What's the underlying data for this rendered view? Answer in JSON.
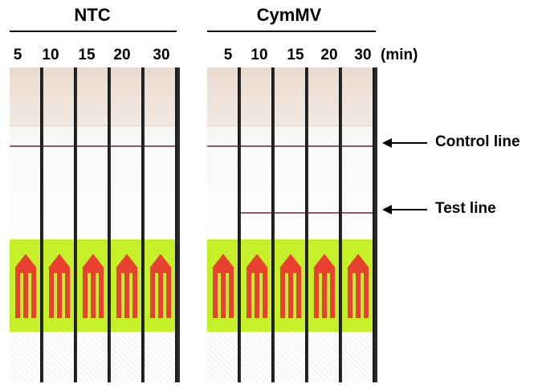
{
  "groups": [
    {
      "title": "NTC",
      "times": [
        "5",
        "10",
        "15",
        "20",
        "30"
      ]
    },
    {
      "title": "CymMV",
      "times": [
        "5",
        "10",
        "15",
        "20",
        "30"
      ]
    }
  ],
  "unit_label": "(min)",
  "annotations": {
    "control": "Control line",
    "test": "Test line"
  },
  "strip_colors": {
    "sticker": "#c6f12a",
    "arrow": "#e8412f",
    "band": "#8a3a55"
  },
  "bands": {
    "NTC": {
      "control": [
        true,
        true,
        true,
        true,
        true
      ],
      "test": [
        false,
        false,
        false,
        false,
        false
      ]
    },
    "CymMV": {
      "control": [
        true,
        true,
        true,
        true,
        true
      ],
      "test": [
        false,
        true,
        true,
        true,
        true
      ]
    }
  }
}
